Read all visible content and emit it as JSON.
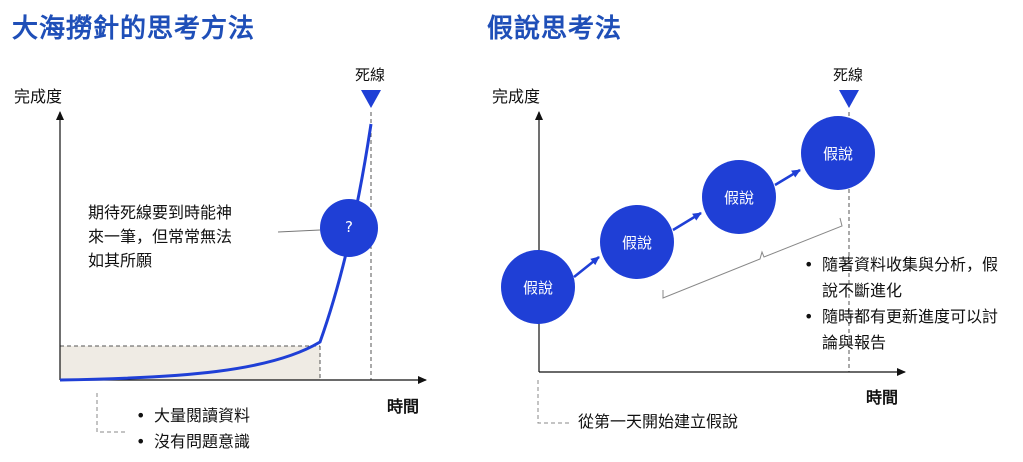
{
  "left": {
    "title": "大海撈針的思考方法",
    "y_label": "完成度",
    "x_label": "時間",
    "deadline_label": "死線",
    "circle_label": "?",
    "note_lines": [
      "期待死線要到時能神",
      "來一筆，但常常無法",
      "如其所願"
    ],
    "bullets": [
      "大量閱讀資料",
      "沒有問題意識"
    ]
  },
  "right": {
    "title": "假說思考法",
    "y_label": "完成度",
    "x_label": "時間",
    "deadline_label": "死線",
    "hypotheses": [
      "假說",
      "假說",
      "假說",
      "假說"
    ],
    "bullets": [
      "隨著資料收集與分析，假說不斷進化",
      "隨時都有更新進度可以討論與報告"
    ],
    "bottom_note": "從第一天開始建立假說"
  },
  "colors": {
    "accent": "#1f3fd6",
    "title": "#1f4fb8",
    "shade": "#efebe4"
  }
}
